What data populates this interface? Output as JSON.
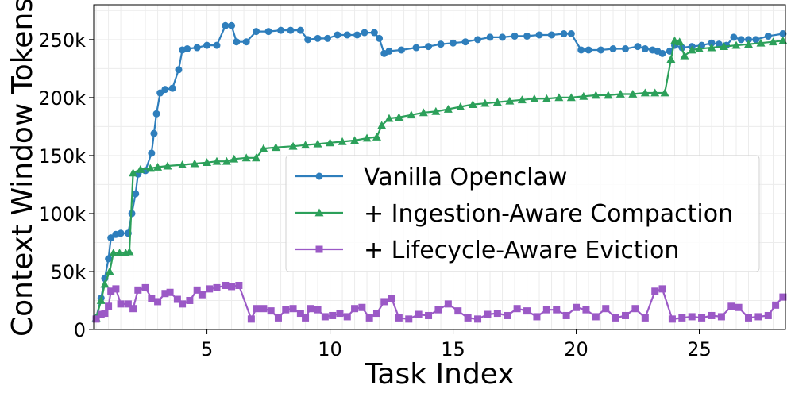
{
  "chart_data": {
    "type": "line",
    "xlabel": "Task Index",
    "ylabel": "Context Window Tokens",
    "xlim": [
      0.4,
      28.5
    ],
    "ylim": [
      0,
      280000
    ],
    "x_ticks": [
      5,
      10,
      15,
      20,
      25
    ],
    "x_tick_labels": [
      "5",
      "10",
      "15",
      "20",
      "25"
    ],
    "y_ticks": [
      0,
      50000,
      100000,
      150000,
      200000,
      250000
    ],
    "y_tick_labels": [
      "0",
      "50k",
      "100k",
      "150k",
      "200k",
      "250k"
    ],
    "grid": true,
    "legend_position": "center-right",
    "series": [
      {
        "name": "Vanilla Openclaw",
        "color": "#2e7ebc",
        "marker": "circle",
        "points": [
          [
            0.5,
            10000
          ],
          [
            0.7,
            27000
          ],
          [
            0.85,
            44000
          ],
          [
            1.0,
            61000
          ],
          [
            1.1,
            79000
          ],
          [
            1.3,
            82000
          ],
          [
            1.5,
            83000
          ],
          [
            1.8,
            83000
          ],
          [
            1.95,
            100000
          ],
          [
            2.1,
            117000
          ],
          [
            2.2,
            134000
          ],
          [
            2.5,
            137000
          ],
          [
            2.75,
            152000
          ],
          [
            2.85,
            169000
          ],
          [
            2.95,
            186000
          ],
          [
            3.1,
            204000
          ],
          [
            3.3,
            207000
          ],
          [
            3.6,
            208000
          ],
          [
            3.85,
            224000
          ],
          [
            4.0,
            241000
          ],
          [
            4.2,
            242000
          ],
          [
            4.6,
            243000
          ],
          [
            5.0,
            245000
          ],
          [
            5.4,
            245000
          ],
          [
            5.75,
            262000
          ],
          [
            6.0,
            262000
          ],
          [
            6.2,
            248000
          ],
          [
            6.6,
            248000
          ],
          [
            7.0,
            257000
          ],
          [
            7.5,
            257000
          ],
          [
            8.0,
            258000
          ],
          [
            8.4,
            258000
          ],
          [
            8.8,
            258000
          ],
          [
            9.1,
            250000
          ],
          [
            9.5,
            251000
          ],
          [
            9.9,
            251000
          ],
          [
            10.3,
            254000
          ],
          [
            10.7,
            254000
          ],
          [
            11.1,
            254000
          ],
          [
            11.4,
            256000
          ],
          [
            11.8,
            256000
          ],
          [
            12.0,
            251000
          ],
          [
            12.2,
            238000
          ],
          [
            12.4,
            240000
          ],
          [
            12.9,
            241000
          ],
          [
            13.5,
            243000
          ],
          [
            14.0,
            244000
          ],
          [
            14.5,
            246000
          ],
          [
            15.0,
            247000
          ],
          [
            15.5,
            248000
          ],
          [
            16.0,
            250000
          ],
          [
            16.5,
            252000
          ],
          [
            17.0,
            252000
          ],
          [
            17.5,
            253000
          ],
          [
            18.0,
            253000
          ],
          [
            18.5,
            254000
          ],
          [
            19.0,
            254000
          ],
          [
            19.5,
            255000
          ],
          [
            19.8,
            255000
          ],
          [
            20.2,
            241000
          ],
          [
            20.5,
            241000
          ],
          [
            21.0,
            241000
          ],
          [
            21.5,
            242000
          ],
          [
            22.0,
            242000
          ],
          [
            22.5,
            244000
          ],
          [
            22.8,
            242000
          ],
          [
            23.1,
            241000
          ],
          [
            23.3,
            240000
          ],
          [
            23.5,
            238000
          ],
          [
            23.8,
            240000
          ],
          [
            24.0,
            245000
          ],
          [
            24.3,
            243000
          ],
          [
            24.7,
            244000
          ],
          [
            25.1,
            245000
          ],
          [
            25.5,
            247000
          ],
          [
            25.8,
            246000
          ],
          [
            26.1,
            245000
          ],
          [
            26.4,
            252000
          ],
          [
            26.7,
            250000
          ],
          [
            27.0,
            250000
          ],
          [
            27.3,
            250000
          ],
          [
            27.8,
            253000
          ],
          [
            28.4,
            255000
          ]
        ]
      },
      {
        "name": "+ Ingestion-Aware Compaction",
        "color": "#2ca05a",
        "marker": "triangle",
        "points": [
          [
            0.5,
            10000
          ],
          [
            0.7,
            25000
          ],
          [
            0.85,
            39000
          ],
          [
            1.05,
            50000
          ],
          [
            1.2,
            66000
          ],
          [
            1.45,
            66000
          ],
          [
            1.7,
            66000
          ],
          [
            1.85,
            67000
          ],
          [
            2.0,
            135000
          ],
          [
            2.3,
            138000
          ],
          [
            2.7,
            139000
          ],
          [
            3.0,
            140000
          ],
          [
            3.4,
            141000
          ],
          [
            4.0,
            142000
          ],
          [
            4.5,
            143000
          ],
          [
            5.0,
            144000
          ],
          [
            5.4,
            145000
          ],
          [
            5.8,
            145000
          ],
          [
            6.1,
            147000
          ],
          [
            6.6,
            148000
          ],
          [
            7.0,
            148000
          ],
          [
            7.3,
            156000
          ],
          [
            7.8,
            157000
          ],
          [
            8.5,
            158000
          ],
          [
            9.0,
            159000
          ],
          [
            9.5,
            160000
          ],
          [
            10.0,
            161000
          ],
          [
            10.5,
            162000
          ],
          [
            11.0,
            163000
          ],
          [
            11.5,
            165000
          ],
          [
            11.9,
            166000
          ],
          [
            12.1,
            176000
          ],
          [
            12.4,
            182000
          ],
          [
            12.8,
            183000
          ],
          [
            13.3,
            185000
          ],
          [
            13.8,
            187000
          ],
          [
            14.3,
            188000
          ],
          [
            14.8,
            190000
          ],
          [
            15.3,
            192000
          ],
          [
            15.8,
            194000
          ],
          [
            16.3,
            195000
          ],
          [
            16.8,
            196000
          ],
          [
            17.3,
            197000
          ],
          [
            17.8,
            198000
          ],
          [
            18.3,
            199000
          ],
          [
            18.8,
            199000
          ],
          [
            19.3,
            200000
          ],
          [
            19.8,
            200000
          ],
          [
            20.3,
            201000
          ],
          [
            20.8,
            202000
          ],
          [
            21.3,
            202000
          ],
          [
            21.8,
            203000
          ],
          [
            22.3,
            203000
          ],
          [
            22.8,
            204000
          ],
          [
            23.2,
            204000
          ],
          [
            23.6,
            204000
          ],
          [
            23.85,
            233000
          ],
          [
            24.0,
            249000
          ],
          [
            24.2,
            248000
          ],
          [
            24.4,
            236000
          ],
          [
            24.7,
            241000
          ],
          [
            25.0,
            242000
          ],
          [
            25.5,
            243000
          ],
          [
            26.0,
            244000
          ],
          [
            26.5,
            245000
          ],
          [
            27.0,
            246000
          ],
          [
            27.5,
            247000
          ],
          [
            28.0,
            248000
          ],
          [
            28.4,
            249000
          ]
        ]
      },
      {
        "name": "+ Lifecycle-Aware Eviction",
        "color": "#9b59c6",
        "marker": "square",
        "points": [
          [
            0.5,
            9000
          ],
          [
            0.7,
            13000
          ],
          [
            0.85,
            14000
          ],
          [
            1.0,
            20000
          ],
          [
            1.1,
            33000
          ],
          [
            1.3,
            35000
          ],
          [
            1.5,
            22000
          ],
          [
            1.8,
            22000
          ],
          [
            2.0,
            18000
          ],
          [
            2.2,
            34000
          ],
          [
            2.5,
            36000
          ],
          [
            2.75,
            27000
          ],
          [
            3.0,
            24000
          ],
          [
            3.3,
            31000
          ],
          [
            3.5,
            32000
          ],
          [
            3.8,
            26000
          ],
          [
            4.0,
            22000
          ],
          [
            4.3,
            25000
          ],
          [
            4.6,
            34000
          ],
          [
            4.8,
            30000
          ],
          [
            5.1,
            35000
          ],
          [
            5.4,
            36000
          ],
          [
            5.75,
            38000
          ],
          [
            6.0,
            37000
          ],
          [
            6.3,
            38000
          ],
          [
            6.8,
            9000
          ],
          [
            7.0,
            18000
          ],
          [
            7.3,
            18000
          ],
          [
            7.6,
            16000
          ],
          [
            7.9,
            10000
          ],
          [
            8.2,
            17000
          ],
          [
            8.5,
            18000
          ],
          [
            8.8,
            14000
          ],
          [
            9.0,
            10000
          ],
          [
            9.2,
            18000
          ],
          [
            9.5,
            17000
          ],
          [
            9.8,
            11000
          ],
          [
            10.1,
            12000
          ],
          [
            10.4,
            14000
          ],
          [
            10.7,
            11000
          ],
          [
            11.0,
            18000
          ],
          [
            11.3,
            19000
          ],
          [
            11.6,
            10000
          ],
          [
            11.9,
            14000
          ],
          [
            12.2,
            24000
          ],
          [
            12.5,
            27000
          ],
          [
            12.8,
            10000
          ],
          [
            13.2,
            9000
          ],
          [
            13.6,
            13000
          ],
          [
            14.0,
            12000
          ],
          [
            14.4,
            17000
          ],
          [
            14.8,
            22000
          ],
          [
            15.2,
            16000
          ],
          [
            15.6,
            10000
          ],
          [
            16.0,
            9000
          ],
          [
            16.4,
            13000
          ],
          [
            16.8,
            14000
          ],
          [
            17.2,
            12000
          ],
          [
            17.6,
            18000
          ],
          [
            18.0,
            16000
          ],
          [
            18.4,
            11000
          ],
          [
            18.8,
            17000
          ],
          [
            19.2,
            17000
          ],
          [
            19.6,
            12000
          ],
          [
            20.0,
            19000
          ],
          [
            20.4,
            17000
          ],
          [
            20.8,
            11000
          ],
          [
            21.2,
            18000
          ],
          [
            21.6,
            10000
          ],
          [
            22.0,
            12000
          ],
          [
            22.4,
            18000
          ],
          [
            22.8,
            10000
          ],
          [
            23.2,
            33000
          ],
          [
            23.5,
            35000
          ],
          [
            23.9,
            9000
          ],
          [
            24.3,
            10000
          ],
          [
            24.7,
            11000
          ],
          [
            25.1,
            10000
          ],
          [
            25.5,
            12000
          ],
          [
            25.9,
            11000
          ],
          [
            26.3,
            20000
          ],
          [
            26.6,
            19000
          ],
          [
            27.0,
            10000
          ],
          [
            27.4,
            11000
          ],
          [
            27.8,
            12000
          ],
          [
            28.1,
            21000
          ],
          [
            28.4,
            28000
          ]
        ]
      }
    ]
  }
}
